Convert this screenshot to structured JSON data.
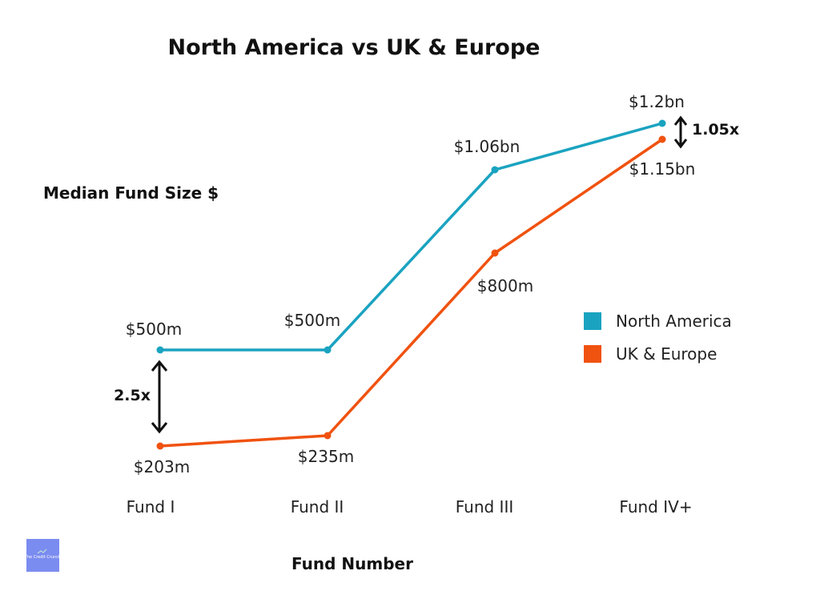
{
  "chart_data": {
    "type": "line",
    "title": "North America vs UK & Europe",
    "xlabel": "Fund Number",
    "ylabel": "Median Fund Size $",
    "categories": [
      "Fund I",
      "Fund II",
      "Fund III",
      "Fund IV+"
    ],
    "series": [
      {
        "name": "North America",
        "color": "#1AA3C0",
        "values": [
          500,
          500,
          1060,
          1200
        ],
        "labels": [
          "$500m",
          "$500m",
          "$1.06bn",
          "$1.2bn"
        ]
      },
      {
        "name": "UK & Europe",
        "color": "#F0520F",
        "values": [
          203,
          235,
          800,
          1150
        ],
        "labels": [
          "$203m",
          "$235m",
          "$800m",
          "$1.15bn"
        ]
      }
    ],
    "annotations": [
      {
        "text": "2.5x",
        "category": "Fund I"
      },
      {
        "text": "1.05x",
        "category": "Fund IV+"
      }
    ],
    "legend_position": "right",
    "grid": false
  },
  "logo": {
    "text": "The Credit Crunch",
    "color": "#7B8CF0"
  }
}
